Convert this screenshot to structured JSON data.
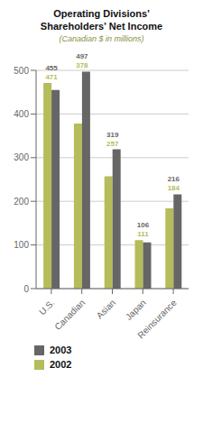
{
  "chart_data": {
    "type": "bar",
    "title": "Operating Divisions'\nShareholders' Net Income",
    "subtitle": "(Canadian $ in millions)",
    "categories": [
      "U.S.",
      "Canadian",
      "Asian",
      "Japan",
      "Reinsurance"
    ],
    "series": [
      {
        "name": "2002",
        "color": "#b5bc5a",
        "values": [
          471,
          378,
          257,
          111,
          184
        ]
      },
      {
        "name": "2003",
        "color": "#666666",
        "values": [
          455,
          497,
          319,
          106,
          216
        ]
      }
    ],
    "ylim": [
      0,
      500
    ],
    "yticks": [
      0,
      100,
      200,
      300,
      400,
      500
    ],
    "grid": true,
    "legend": "lower left",
    "data_labels": true
  }
}
